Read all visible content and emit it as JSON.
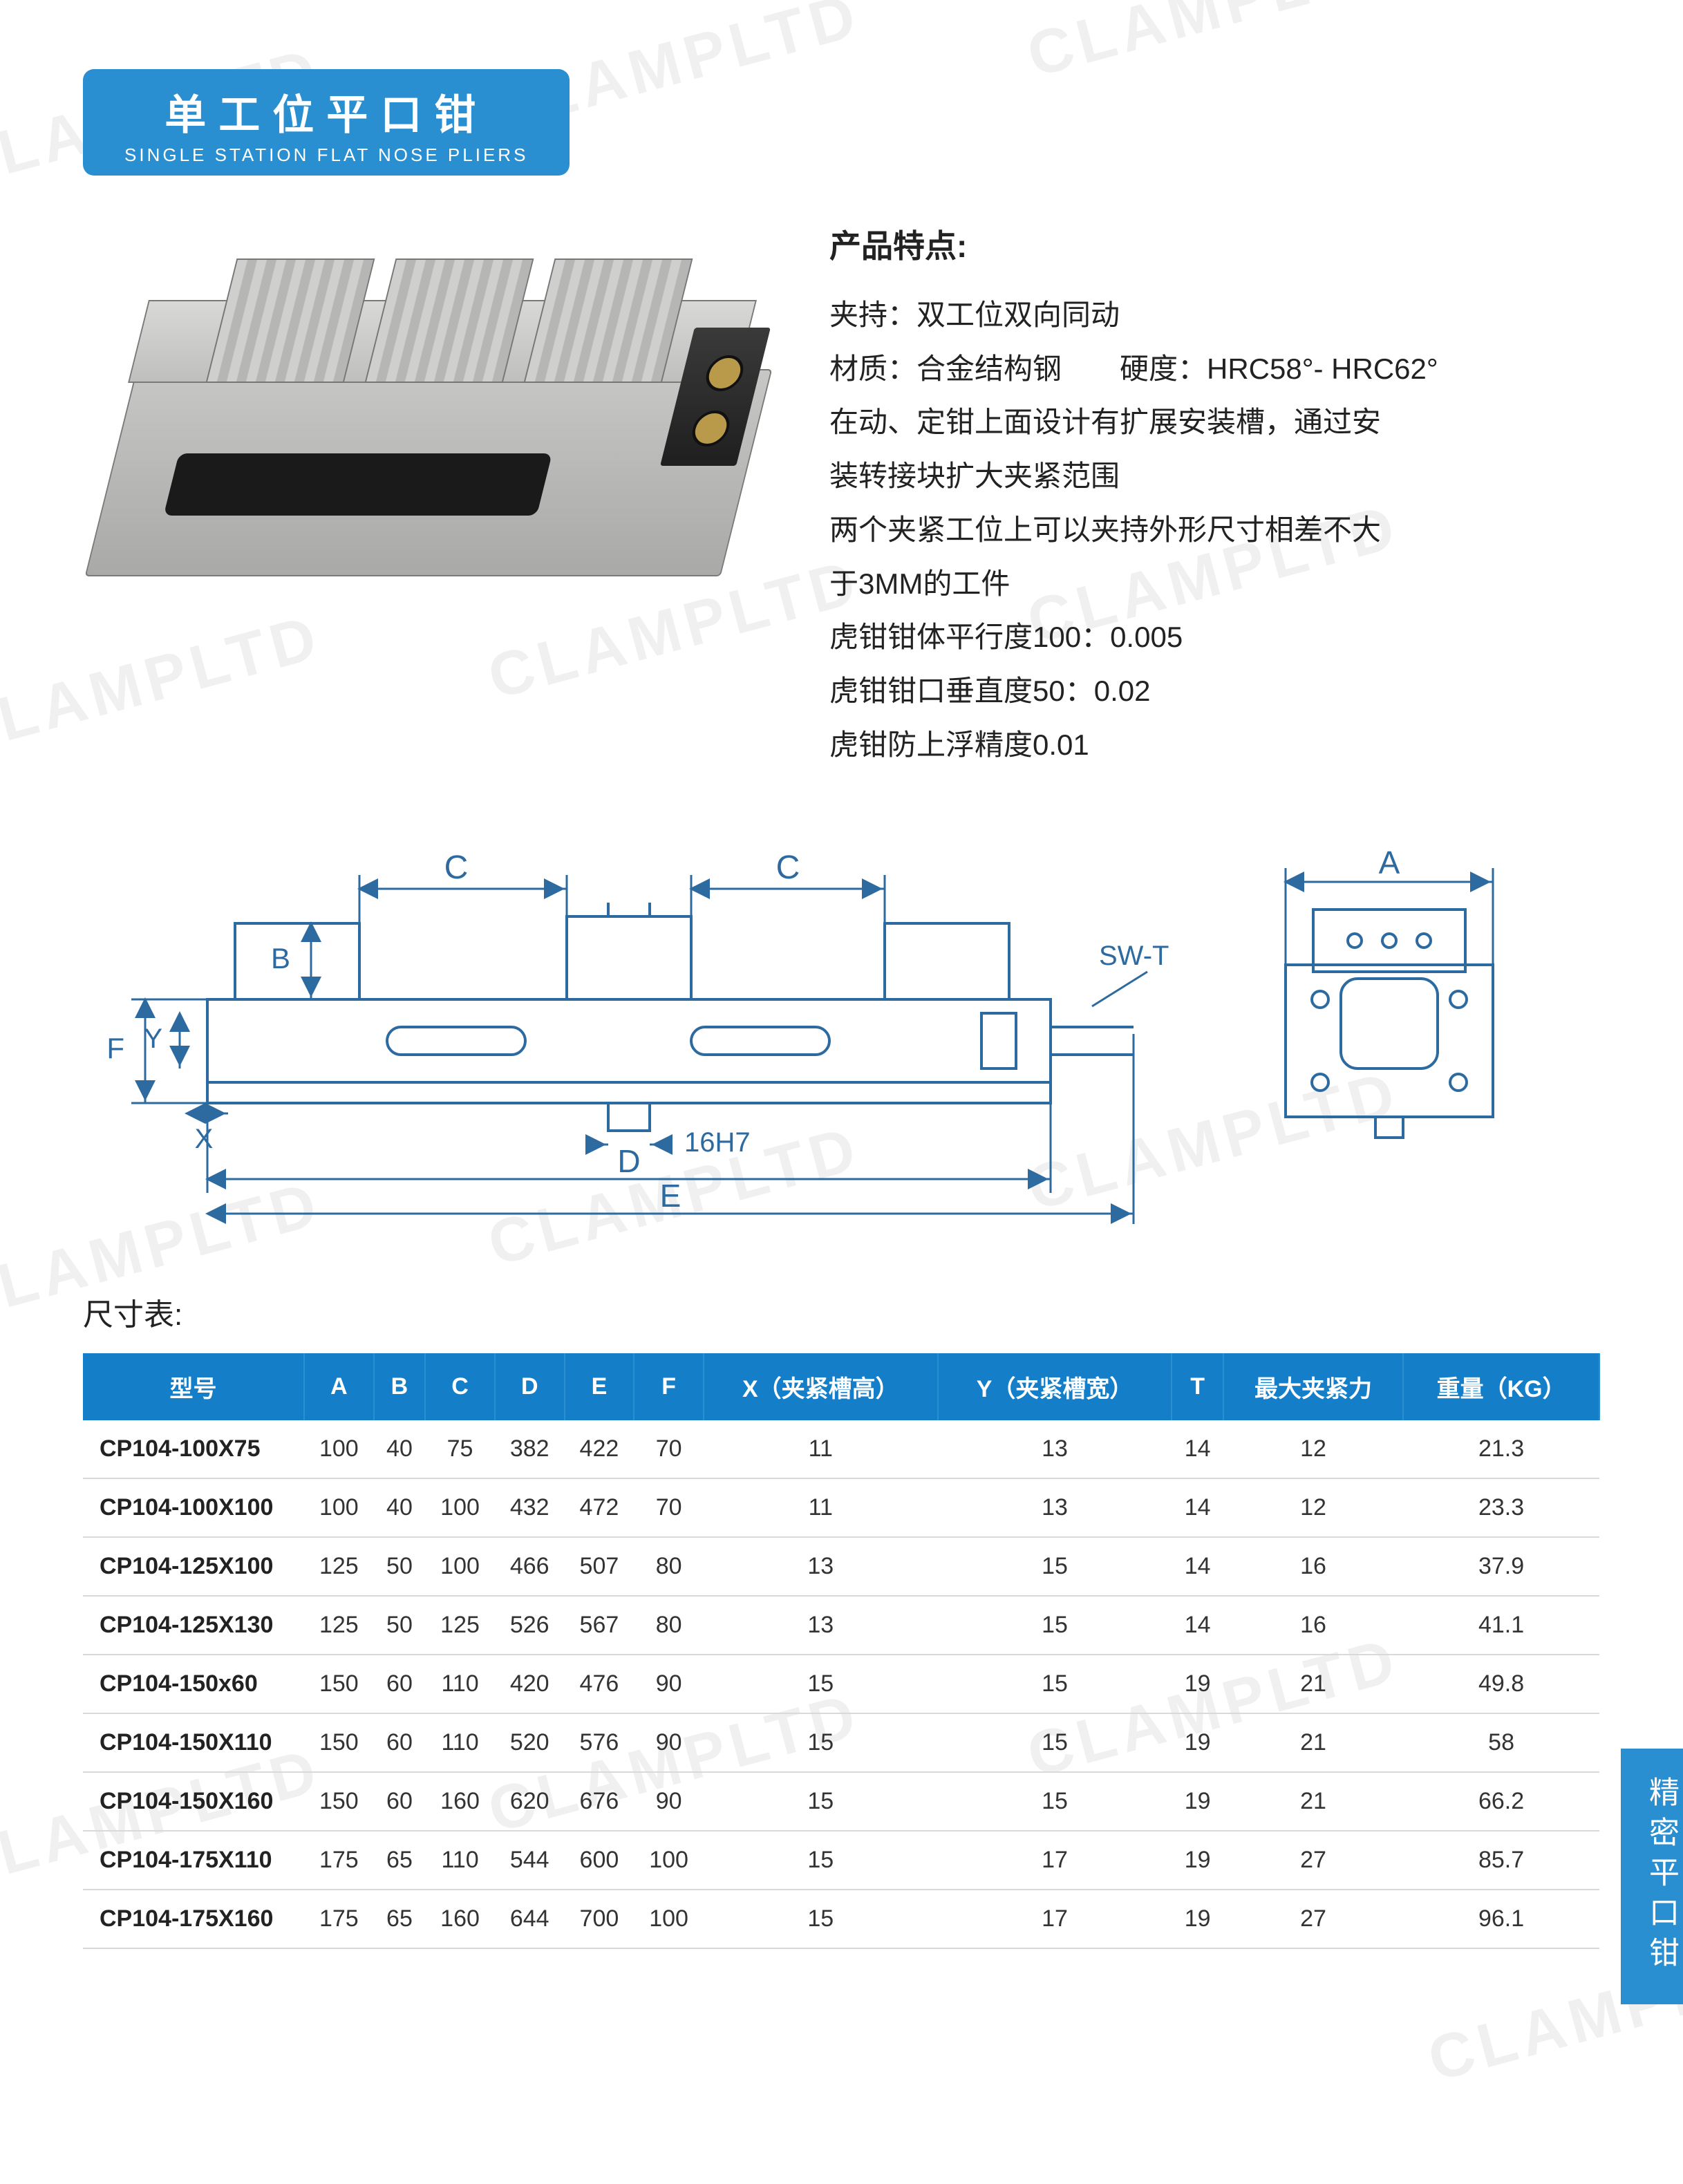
{
  "watermark_text": "CLAMPLTD",
  "title": {
    "cn": "单工位平口钳",
    "en": "SINGLE STATION FLAT NOSE PLIERS"
  },
  "features_heading": "产品特点:",
  "features": [
    "夹持：双工位双向同动",
    "材质：合金结构钢　　硬度：HRC58°- HRC62°",
    "在动、定钳上面设计有扩展安装槽，通过安",
    "装转接块扩大夹紧范围",
    "两个夹紧工位上可以夹持外形尺寸相差不大",
    "于3MM的工件",
    "虎钳钳体平行度100：0.005",
    "虎钳钳口垂直度50：0.02",
    "虎钳防上浮精度0.01"
  ],
  "drawing_labels": {
    "C": "C",
    "B": "B",
    "F": "F",
    "Y": "Y",
    "X": "X",
    "D": "D",
    "E": "E",
    "A": "A",
    "SW_T": "SW-T",
    "key": "16H7"
  },
  "table_title": "尺寸表:",
  "spec_table": {
    "header_bg": "#147ec9",
    "header_fg": "#ffffff",
    "row_border": "#d9d9d9",
    "columns": [
      "型号",
      "A",
      "B",
      "C",
      "D",
      "E",
      "F",
      "X（夹紧槽高）",
      "Y（夹紧槽宽）",
      "T",
      "最大夹紧力",
      "重量（KG）"
    ],
    "rows": [
      [
        "CP104-100X75",
        "100",
        "40",
        "75",
        "382",
        "422",
        "70",
        "11",
        "13",
        "14",
        "12",
        "21.3"
      ],
      [
        "CP104-100X100",
        "100",
        "40",
        "100",
        "432",
        "472",
        "70",
        "11",
        "13",
        "14",
        "12",
        "23.3"
      ],
      [
        "CP104-125X100",
        "125",
        "50",
        "100",
        "466",
        "507",
        "80",
        "13",
        "15",
        "14",
        "16",
        "37.9"
      ],
      [
        "CP104-125X130",
        "125",
        "50",
        "125",
        "526",
        "567",
        "80",
        "13",
        "15",
        "14",
        "16",
        "41.1"
      ],
      [
        "CP104-150x60",
        "150",
        "60",
        "110",
        "420",
        "476",
        "90",
        "15",
        "15",
        "19",
        "21",
        "49.8"
      ],
      [
        "CP104-150X110",
        "150",
        "60",
        "110",
        "520",
        "576",
        "90",
        "15",
        "15",
        "19",
        "21",
        "58"
      ],
      [
        "CP104-150X160",
        "150",
        "60",
        "160",
        "620",
        "676",
        "90",
        "15",
        "15",
        "19",
        "21",
        "66.2"
      ],
      [
        "CP104-175X110",
        "175",
        "65",
        "110",
        "544",
        "600",
        "100",
        "15",
        "17",
        "19",
        "27",
        "85.7"
      ],
      [
        "CP104-175X160",
        "175",
        "65",
        "160",
        "644",
        "700",
        "100",
        "15",
        "17",
        "19",
        "27",
        "96.1"
      ]
    ]
  },
  "side_tab": "精密平口钳",
  "colors": {
    "accent": "#2a8fd1",
    "accent_dark": "#147ec9",
    "stroke": "#2d6aa0"
  }
}
